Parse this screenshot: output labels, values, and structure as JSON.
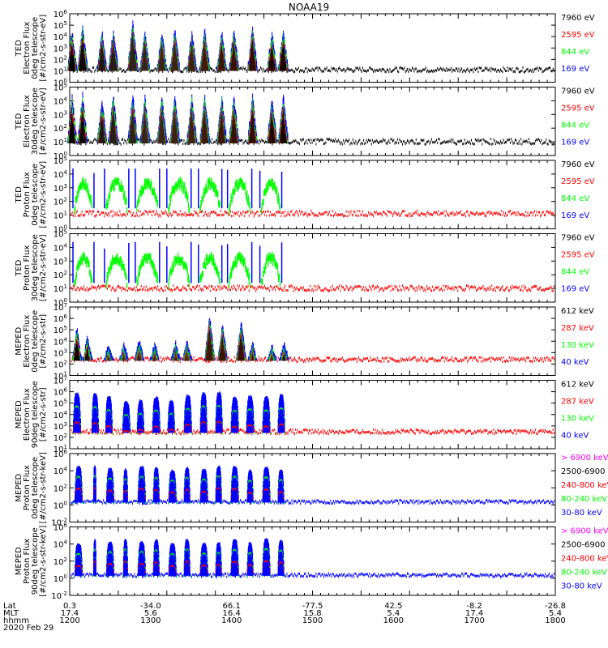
{
  "title": "NOAA19",
  "colors": {
    "blue": "#0000ff",
    "red": "#ff0000",
    "green": "#00ff00",
    "black": "#000000",
    "magenta": "#ff00ff"
  },
  "chart_data": {
    "type": "scatter",
    "title": "NOAA19",
    "panels": [
      {
        "id": "ted-e-0",
        "ylabel": [
          "TED",
          "Electron Flux",
          "0deg telescope",
          "[#/cm2-s-str-eV]"
        ],
        "ylog": [
          0,
          6
        ],
        "ticks": [
          "10^0",
          "10^1",
          "10^2",
          "10^3",
          "10^4",
          "10^5",
          "10^6"
        ],
        "legend": [
          {
            "text": "7960 eV",
            "color": "black"
          },
          {
            "text": "2595 eV",
            "color": "red"
          },
          {
            "text": "844 eV",
            "color": "green"
          },
          {
            "text": "169 eV",
            "color": "blue"
          }
        ],
        "bursts": [
          [
            1203,
            1.35,
            "red"
          ],
          [
            1216,
            1.6,
            "red"
          ],
          [
            1240,
            1.35,
            "red"
          ],
          [
            1254,
            1.4,
            "red"
          ],
          [
            1278,
            1.8,
            "red"
          ],
          [
            1293,
            1.3,
            "red"
          ],
          [
            1314,
            1.3,
            "red"
          ],
          [
            1330,
            1.4,
            "red"
          ],
          [
            1351,
            1.3,
            "red"
          ],
          [
            1367,
            1.4,
            "red"
          ],
          [
            1388,
            1.3,
            "red"
          ],
          [
            1403,
            1.4,
            "red"
          ],
          [
            1426,
            1.5,
            "red"
          ],
          [
            1450,
            1.3,
            "red"
          ],
          [
            1464,
            1.4,
            "red"
          ]
        ],
        "noise_floor": 1.0
      },
      {
        "id": "ted-e-30",
        "ylabel": [
          "TED",
          "Electron Flux",
          "30deg telescope",
          "[#/cm2-s-str-eV]"
        ],
        "ylog": [
          0,
          5
        ],
        "ticks": [
          "10^0",
          "10^1",
          "10^2",
          "10^3",
          "10^4",
          "10^5"
        ],
        "legend": [
          {
            "text": "7960 eV",
            "color": "black"
          },
          {
            "text": "2595 eV",
            "color": "red"
          },
          {
            "text": "844 eV",
            "color": "green"
          },
          {
            "text": "169 eV",
            "color": "blue"
          }
        ],
        "bursts": [
          [
            1203,
            1.3,
            "red"
          ],
          [
            1216,
            1.5,
            "red"
          ],
          [
            1240,
            1.2,
            "red"
          ],
          [
            1254,
            1.4,
            "red"
          ],
          [
            1278,
            1.7,
            "red"
          ],
          [
            1293,
            1.3,
            "red"
          ],
          [
            1314,
            1.3,
            "red"
          ],
          [
            1330,
            1.4,
            "red"
          ],
          [
            1351,
            1.3,
            "red"
          ],
          [
            1367,
            1.4,
            "red"
          ],
          [
            1388,
            1.3,
            "red"
          ],
          [
            1403,
            1.4,
            "red"
          ],
          [
            1426,
            1.5,
            "red"
          ],
          [
            1450,
            1.3,
            "red"
          ],
          [
            1464,
            1.4,
            "red"
          ]
        ],
        "noise_floor": 0.9
      },
      {
        "id": "ted-p-0",
        "ylabel": [
          "TED",
          "Proton Flux",
          "0deg telescope",
          "[#/cm2-s-str-eV]"
        ],
        "ylog": [
          0,
          5
        ],
        "ticks": [
          "10^0",
          "10^1",
          "10^2",
          "10^3",
          "10^4",
          "10^5"
        ],
        "legend": [
          {
            "text": "7960 eV",
            "color": "black"
          },
          {
            "text": "2595 eV",
            "color": "red"
          },
          {
            "text": "844 eV",
            "color": "green"
          },
          {
            "text": "169 eV",
            "color": "blue"
          }
        ],
        "arcs": [
          [
            1206,
            1228
          ],
          [
            1245,
            1271
          ],
          [
            1283,
            1309
          ],
          [
            1322,
            1348
          ],
          [
            1361,
            1386
          ],
          [
            1397,
            1423
          ],
          [
            1437,
            1460
          ]
        ],
        "noise_floor": 1.0
      },
      {
        "id": "ted-p-30",
        "ylabel": [
          "TED",
          "Proton Flux",
          "30deg telescope",
          "[#/cm2-s-str-eV]"
        ],
        "ylog": [
          0,
          5
        ],
        "ticks": [
          "10^0",
          "10^1",
          "10^2",
          "10^3",
          "10^4",
          "10^5"
        ],
        "legend": [
          {
            "text": "7960 eV",
            "color": "black"
          },
          {
            "text": "2595 eV",
            "color": "red"
          },
          {
            "text": "844 eV",
            "color": "green"
          },
          {
            "text": "169 eV",
            "color": "blue"
          }
        ],
        "arcs": [
          [
            1206,
            1228
          ],
          [
            1245,
            1271
          ],
          [
            1283,
            1309
          ],
          [
            1322,
            1348
          ],
          [
            1361,
            1386
          ],
          [
            1397,
            1423
          ],
          [
            1437,
            1460
          ]
        ],
        "noise_floor": 0.9
      },
      {
        "id": "meped-e-0",
        "ylabel": [
          "MEPED",
          "Electron Flux",
          "0deg telescope",
          "[#/cm2-s-str]"
        ],
        "ylog": [
          1,
          7
        ],
        "ticks": [
          "10^1",
          "10^2",
          "10^3",
          "10^4",
          "10^5",
          "10^6",
          "10^7"
        ],
        "legend": [
          {
            "text": "612 keV",
            "color": "black"
          },
          {
            "text": "287 keV",
            "color": "red"
          },
          {
            "text": "130 keV",
            "color": "green"
          },
          {
            "text": "40 keV",
            "color": "blue"
          }
        ],
        "bursts": [
          [
            1209,
            5.5,
            "blue"
          ],
          [
            1222,
            4.7,
            "blue"
          ],
          [
            1248,
            4.0,
            "blue"
          ],
          [
            1267,
            4.1,
            "blue"
          ],
          [
            1286,
            4.5,
            "blue"
          ],
          [
            1305,
            4.2,
            "blue"
          ],
          [
            1331,
            4.3,
            "blue"
          ],
          [
            1345,
            4.4,
            "blue"
          ],
          [
            1373,
            6.6,
            "blue"
          ],
          [
            1389,
            5.8,
            "blue"
          ],
          [
            1412,
            6.0,
            "blue"
          ],
          [
            1426,
            4.2,
            "blue"
          ],
          [
            1450,
            4.0,
            "blue"
          ],
          [
            1465,
            4.2,
            "blue"
          ]
        ],
        "noise_floor": 2.3
      },
      {
        "id": "meped-e-90",
        "ylabel": [
          "MEPED",
          "Electron Flux",
          "90deg telescope",
          "[#/cm2-s-str]"
        ],
        "ylog": [
          1,
          7
        ],
        "ticks": [
          "10^1",
          "10^2",
          "10^3",
          "10^4",
          "10^5",
          "10^6",
          "10^7"
        ],
        "legend": [
          {
            "text": "612 keV",
            "color": "black"
          },
          {
            "text": "287 keV",
            "color": "red"
          },
          {
            "text": "130 keV",
            "color": "green"
          },
          {
            "text": "40 keV",
            "color": "blue"
          }
        ],
        "twin": [
          [
            1204,
            1214
          ],
          [
            1227,
            1236
          ],
          [
            1244,
            1253
          ],
          [
            1265,
            1275
          ],
          [
            1283,
            1292
          ],
          [
            1302,
            1312
          ],
          [
            1321,
            1330
          ],
          [
            1341,
            1351
          ],
          [
            1361,
            1370
          ],
          [
            1380,
            1389
          ],
          [
            1399,
            1409
          ],
          [
            1418,
            1428
          ],
          [
            1438,
            1448
          ],
          [
            1457,
            1466
          ]
        ],
        "noise_floor": 2.4
      },
      {
        "id": "meped-p-0",
        "ylabel": [
          "MEPED",
          "Proton Flux",
          "0deg telescope",
          "[#/cm2-s-str-keV]"
        ],
        "ylog": [
          -2,
          6
        ],
        "ticks": [
          "10^-2",
          "10^0",
          "10^2",
          "10^4",
          "10^6"
        ],
        "legend": [
          {
            "text": "> 6900 keV",
            "color": "magenta"
          },
          {
            "text": "2500-6900",
            "color": "black"
          },
          {
            "text": "240-800 keV",
            "color": "red"
          },
          {
            "text": "80-240 keV",
            "color": "green"
          },
          {
            "text": "30-80 keV",
            "color": "blue"
          }
        ],
        "twin": [
          [
            1206,
            1216
          ],
          [
            1229,
            1233
          ],
          [
            1245,
            1255
          ],
          [
            1266,
            1272
          ],
          [
            1284,
            1294
          ],
          [
            1303,
            1311
          ],
          [
            1322,
            1332
          ],
          [
            1341,
            1349
          ],
          [
            1361,
            1371
          ],
          [
            1380,
            1388
          ],
          [
            1399,
            1409
          ],
          [
            1419,
            1427
          ],
          [
            1438,
            1448
          ],
          [
            1457,
            1465
          ]
        ],
        "noise_floor": 0.3
      },
      {
        "id": "meped-p-90",
        "ylabel": [
          "MEPED",
          "Proton Flux",
          "90deg telescope",
          "[#/cm2-s-str-keV]"
        ],
        "ylog": [
          -2,
          6
        ],
        "ticks": [
          "10^-2",
          "10^0",
          "10^2",
          "10^4",
          "10^6"
        ],
        "legend": [
          {
            "text": "> 6900 keV",
            "color": "magenta"
          },
          {
            "text": "2500-6900",
            "color": "black"
          },
          {
            "text": "240-800 keV",
            "color": "red"
          },
          {
            "text": "80-240 keV",
            "color": "green"
          },
          {
            "text": "30-80 keV",
            "color": "blue"
          }
        ],
        "twin": [
          [
            1206,
            1216
          ],
          [
            1229,
            1233
          ],
          [
            1245,
            1255
          ],
          [
            1266,
            1272
          ],
          [
            1284,
            1294
          ],
          [
            1303,
            1311
          ],
          [
            1322,
            1332
          ],
          [
            1341,
            1349
          ],
          [
            1361,
            1371
          ],
          [
            1380,
            1388
          ],
          [
            1399,
            1409
          ],
          [
            1419,
            1427
          ],
          [
            1438,
            1448
          ],
          [
            1457,
            1465
          ]
        ],
        "noise_floor": 0.3
      }
    ],
    "x_axis": {
      "range_min": [
        1200,
        1800
      ],
      "row_labels": [
        "Lat",
        "MLT",
        "hhmm"
      ],
      "ticks": [
        {
          "lat": "0.3",
          "mlt": "17.4",
          "hhmm": "1200"
        },
        {
          "lat": "-34.0",
          "mlt": "5.6",
          "hhmm": "1300"
        },
        {
          "lat": "66.1",
          "mlt": "16.4",
          "hhmm": "1400"
        },
        {
          "lat": "-77.5",
          "mlt": "15.8",
          "hhmm": "1500"
        },
        {
          "lat": "42.5",
          "mlt": "5.4",
          "hhmm": "1600"
        },
        {
          "lat": "-8.2",
          "mlt": "17.4",
          "hhmm": "1700"
        },
        {
          "lat": "-26.8",
          "mlt": "5.4",
          "hhmm": "1800"
        }
      ],
      "date": "2020 Feb 29"
    }
  }
}
